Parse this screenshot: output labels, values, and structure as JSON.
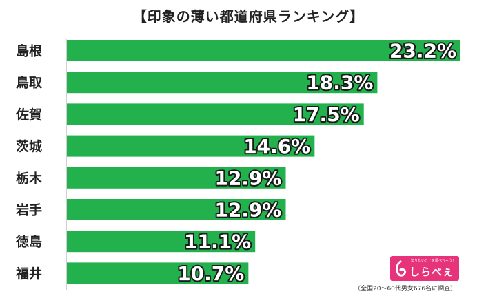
{
  "chart_data": {
    "type": "bar",
    "orientation": "horizontal",
    "title": "【印象の薄い都道府県ランキング】",
    "categories": [
      "島根",
      "鳥取",
      "佐賀",
      "茨城",
      "栃木",
      "岩手",
      "徳島",
      "福井"
    ],
    "values": [
      23.2,
      18.3,
      17.5,
      14.6,
      12.9,
      12.9,
      11.1,
      10.7
    ],
    "value_labels": [
      "23.2%",
      "18.3%",
      "17.5%",
      "14.6%",
      "12.9%",
      "12.9%",
      "11.1%",
      "10.7%"
    ],
    "bar_color": "#22b14c",
    "xlim": [
      0,
      23.2
    ],
    "grid": false,
    "legend": "none"
  },
  "logo": {
    "tagline": "知りたいことを調べちゃう！",
    "text": "しらべぇ"
  },
  "footnote": "（全国20〜60代男女676名に調査）"
}
